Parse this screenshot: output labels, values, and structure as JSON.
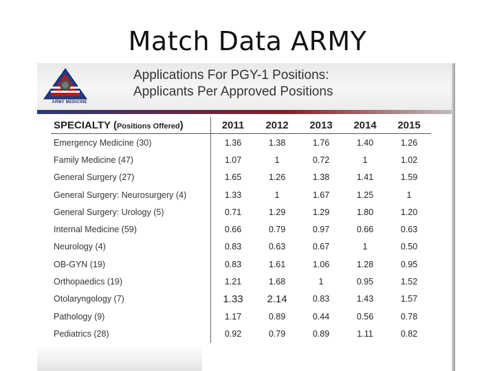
{
  "slide": {
    "title": "Match Data ARMY"
  },
  "logo": {
    "name": "army-medicine-logo",
    "text": "ARMY MEDICINE"
  },
  "header": {
    "line1": "Applications For PGY-1 Positions:",
    "line2": "Applicants Per Approved Positions"
  },
  "table": {
    "specialty_header": "SPECIALTY (",
    "specialty_header_small": "Positions Offered",
    "specialty_header_close": ")",
    "years": [
      "2011",
      "2012",
      "2013",
      "2014",
      "2015"
    ],
    "rows": [
      {
        "specialty": "Emergency Medicine (30)",
        "values": [
          "1.36",
          "1.38",
          "1.76",
          "1.40",
          "1.26"
        ]
      },
      {
        "specialty": "Family Medicine  (47)",
        "values": [
          "1.07",
          "1",
          "0.72",
          "1",
          "1.02"
        ]
      },
      {
        "specialty": "General Surgery (27)",
        "values": [
          "1.65",
          "1.26",
          "1.38",
          "1.41",
          "1.59"
        ]
      },
      {
        "specialty": "General Surgery: Neurosurgery (4)",
        "values": [
          "1.33",
          "1",
          "1.67",
          "1.25",
          "1"
        ]
      },
      {
        "specialty": "General Surgery: Urology (5)",
        "values": [
          "0.71",
          "1.29",
          "1.29",
          "1.80",
          "1.20"
        ]
      },
      {
        "specialty": "Internal Medicine (59)",
        "values": [
          "0.66",
          "0.79",
          "0.97",
          "0.66",
          "0.63"
        ]
      },
      {
        "specialty": "Neurology (4)",
        "values": [
          "0.83",
          "0.63",
          "0.67",
          "1",
          "0.50"
        ]
      },
      {
        "specialty": "OB-GYN (19)",
        "values": [
          "0.83",
          "1.61",
          "1.06",
          "1.28",
          "0.95"
        ]
      },
      {
        "specialty": "Orthopaedics (19)",
        "values": [
          "1.21",
          "1.68",
          "1",
          "0.95",
          "1.52"
        ]
      },
      {
        "specialty": "Otolaryngology (7)",
        "values": [
          "1.33",
          "2.14",
          "0.83",
          "1.43",
          "1.57"
        ]
      },
      {
        "specialty": "Pathology (9)",
        "values": [
          "1.17",
          "0.89",
          "0.44",
          "0.56",
          "0.78"
        ]
      },
      {
        "specialty": "Pediatrics (28)",
        "values": [
          "0.92",
          "0.79",
          "0.89",
          "1.11",
          "0.82"
        ]
      }
    ]
  }
}
